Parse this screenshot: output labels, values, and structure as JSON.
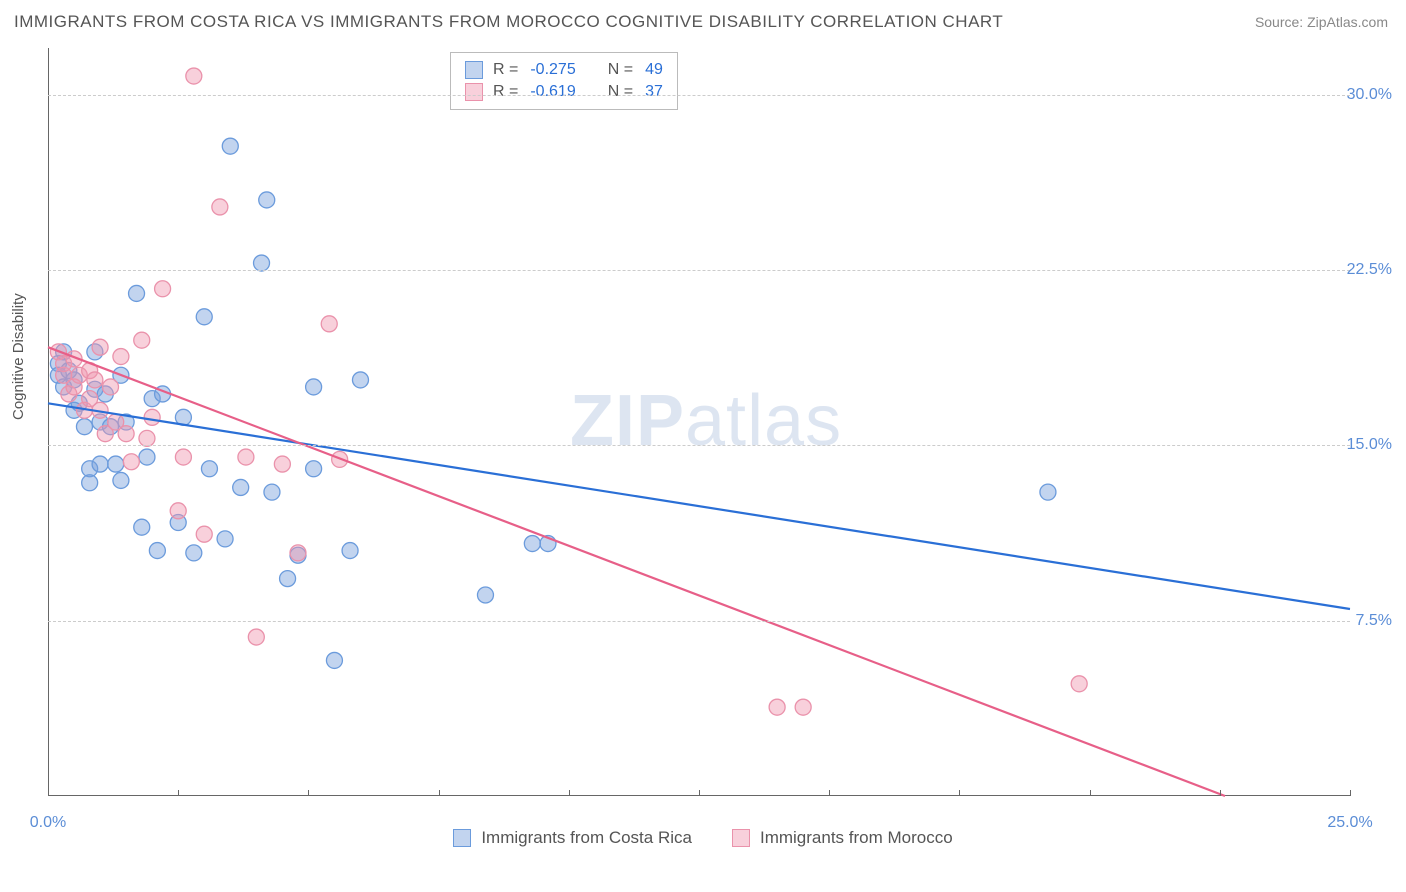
{
  "title": "IMMIGRANTS FROM COSTA RICA VS IMMIGRANTS FROM MOROCCO COGNITIVE DISABILITY CORRELATION CHART",
  "source_label": "Source:",
  "source_name": "ZipAtlas.com",
  "ylabel": "Cognitive Disability",
  "watermark_a": "ZIP",
  "watermark_b": "atlas",
  "chart": {
    "type": "scatter",
    "background_color": "#ffffff",
    "grid_color": "#cccccc",
    "axis_color": "#666666",
    "xlim": [
      0.0,
      25.0
    ],
    "ylim": [
      0.0,
      32.0
    ],
    "xtick_vals": [
      0.0,
      5.0,
      10.0,
      15.0,
      20.0,
      25.0
    ],
    "xtick_labels": [
      "0.0%",
      "",
      "",
      "",
      "",
      "25.0%"
    ],
    "xtick_minor": [
      2.5,
      7.5,
      12.5,
      17.5,
      22.5
    ],
    "ytick_vals": [
      7.5,
      15.0,
      22.5,
      30.0
    ],
    "ytick_labels": [
      "7.5%",
      "15.0%",
      "22.5%",
      "30.0%"
    ],
    "marker_radius": 8,
    "marker_stroke_width": 1.3,
    "trend_line_width": 2.2
  },
  "series": [
    {
      "name": "Immigrants from Costa Rica",
      "fill_color": "rgba(120,160,220,0.45)",
      "stroke_color": "#6b9bdc",
      "trend_color": "#2a6fd6",
      "R": "-0.275",
      "N": "49",
      "trend": {
        "x1": 0.0,
        "y1": 16.8,
        "x2": 25.0,
        "y2": 8.0
      },
      "points": [
        [
          0.2,
          18.5
        ],
        [
          0.2,
          18.0
        ],
        [
          0.3,
          17.5
        ],
        [
          0.3,
          19.0
        ],
        [
          0.4,
          18.2
        ],
        [
          0.5,
          16.5
        ],
        [
          0.5,
          17.8
        ],
        [
          0.6,
          16.8
        ],
        [
          0.7,
          15.8
        ],
        [
          0.8,
          14.0
        ],
        [
          0.8,
          13.4
        ],
        [
          0.9,
          17.4
        ],
        [
          0.9,
          19.0
        ],
        [
          1.0,
          14.2
        ],
        [
          1.0,
          16.0
        ],
        [
          1.1,
          17.2
        ],
        [
          1.2,
          15.8
        ],
        [
          1.3,
          14.2
        ],
        [
          1.4,
          18.0
        ],
        [
          1.4,
          13.5
        ],
        [
          1.5,
          16.0
        ],
        [
          1.7,
          21.5
        ],
        [
          1.8,
          11.5
        ],
        [
          1.9,
          14.5
        ],
        [
          2.0,
          17.0
        ],
        [
          2.1,
          10.5
        ],
        [
          2.2,
          17.2
        ],
        [
          2.5,
          11.7
        ],
        [
          2.6,
          16.2
        ],
        [
          2.8,
          10.4
        ],
        [
          3.0,
          20.5
        ],
        [
          3.1,
          14.0
        ],
        [
          3.4,
          11.0
        ],
        [
          3.5,
          27.8
        ],
        [
          3.7,
          13.2
        ],
        [
          4.1,
          22.8
        ],
        [
          4.2,
          25.5
        ],
        [
          4.3,
          13.0
        ],
        [
          4.6,
          9.3
        ],
        [
          4.8,
          10.3
        ],
        [
          5.1,
          17.5
        ],
        [
          5.1,
          14.0
        ],
        [
          5.5,
          5.8
        ],
        [
          5.8,
          10.5
        ],
        [
          6.0,
          17.8
        ],
        [
          8.4,
          8.6
        ],
        [
          9.3,
          10.8
        ],
        [
          9.6,
          10.8
        ],
        [
          19.2,
          13.0
        ]
      ]
    },
    {
      "name": "Immigrants from Morocco",
      "fill_color": "rgba(240,150,175,0.45)",
      "stroke_color": "#ea92ab",
      "trend_color": "#e75f88",
      "R": "-0.619",
      "N": "37",
      "trend": {
        "x1": 0.0,
        "y1": 19.2,
        "x2": 22.6,
        "y2": -0.0
      },
      "points": [
        [
          0.2,
          19.0
        ],
        [
          0.3,
          18.0
        ],
        [
          0.3,
          18.5
        ],
        [
          0.4,
          17.2
        ],
        [
          0.5,
          18.7
        ],
        [
          0.5,
          17.5
        ],
        [
          0.6,
          18.0
        ],
        [
          0.7,
          16.5
        ],
        [
          0.8,
          17.0
        ],
        [
          0.8,
          18.2
        ],
        [
          0.9,
          17.8
        ],
        [
          1.0,
          16.5
        ],
        [
          1.0,
          19.2
        ],
        [
          1.1,
          15.5
        ],
        [
          1.2,
          17.5
        ],
        [
          1.3,
          16.0
        ],
        [
          1.4,
          18.8
        ],
        [
          1.5,
          15.5
        ],
        [
          1.6,
          14.3
        ],
        [
          1.8,
          19.5
        ],
        [
          1.9,
          15.3
        ],
        [
          2.0,
          16.2
        ],
        [
          2.2,
          21.7
        ],
        [
          2.5,
          12.2
        ],
        [
          2.6,
          14.5
        ],
        [
          2.8,
          30.8
        ],
        [
          3.0,
          11.2
        ],
        [
          3.3,
          25.2
        ],
        [
          3.8,
          14.5
        ],
        [
          4.0,
          6.8
        ],
        [
          4.5,
          14.2
        ],
        [
          4.8,
          10.4
        ],
        [
          5.4,
          20.2
        ],
        [
          5.6,
          14.4
        ],
        [
          14.0,
          3.8
        ],
        [
          19.8,
          4.8
        ],
        [
          14.5,
          3.8
        ]
      ]
    }
  ],
  "legend_top": {
    "R_label": "R =",
    "N_label": "N ="
  },
  "bottom_legend": [
    {
      "key": "series.0.name"
    },
    {
      "key": "series.1.name"
    }
  ]
}
